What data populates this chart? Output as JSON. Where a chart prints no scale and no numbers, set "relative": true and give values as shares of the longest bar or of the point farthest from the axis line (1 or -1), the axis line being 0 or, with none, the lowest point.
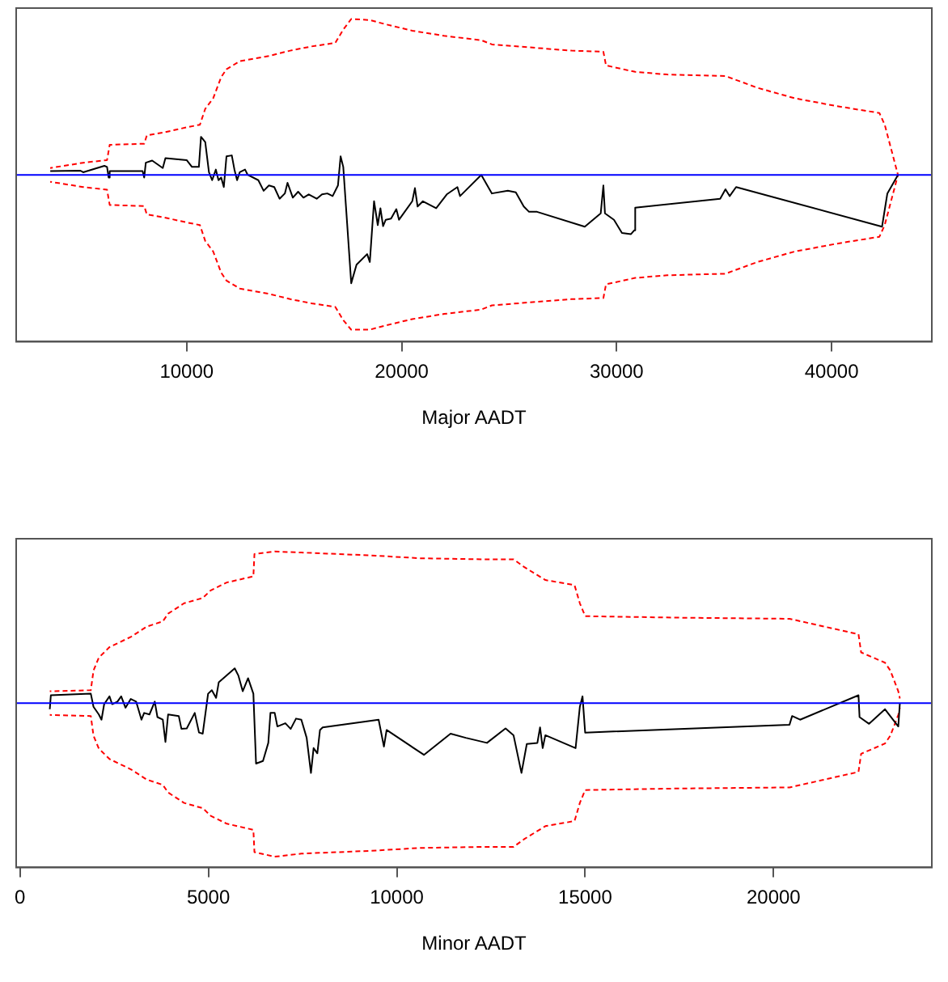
{
  "chart_data": [
    {
      "type": "line",
      "xlabel": "Major AADT",
      "xlim": [
        2070,
        44660
      ],
      "xticks": [
        10000,
        20000,
        30000,
        40000
      ],
      "relative": true,
      "tick_labels": "x",
      "ref_lines": [
        {
          "axis": "y",
          "value": 0,
          "color": "#0000ff"
        }
      ],
      "series": [
        {
          "color": "#000000",
          "x": [
            3655,
            5062,
            5185,
            6173,
            6296,
            6370,
            6420,
            7951,
            8025,
            8099,
            8395,
            8889,
            9012,
            10000,
            10247,
            10568,
            10667,
            10864,
            11037,
            11185,
            11358,
            11481,
            11605,
            11728,
            11852,
            12099,
            12222,
            12346,
            12469,
            12716,
            12840,
            13333,
            13580,
            13827,
            14074,
            14321,
            14568,
            14691,
            14938,
            15185,
            15432,
            15679,
            16049,
            16296,
            16543,
            16790,
            17037,
            17160,
            17284,
            17654,
            17901,
            18395,
            18519,
            18716,
            18889,
            19012,
            19136,
            19259,
            19506,
            19753,
            19877,
            20494,
            20617,
            20741,
            20988,
            21605,
            22099,
            22593,
            22716,
            22963,
            23704,
            24198,
            24938,
            25309,
            25679,
            25926,
            26296,
            28518,
            29259,
            29383,
            29457,
            29876,
            30247,
            30667,
            30815,
            30864,
            34815,
            35062,
            35259,
            35556,
            42345,
            42592,
            43086
          ],
          "values": [
            0.024,
            0.027,
            0.017,
            0.058,
            0.051,
            -0.017,
            0.024,
            0.024,
            -0.017,
            0.078,
            0.092,
            0.044,
            0.108,
            0.095,
            0.051,
            0.051,
            0.244,
            0.21,
            0.017,
            -0.034,
            0.034,
            -0.034,
            -0.017,
            -0.078,
            0.119,
            0.125,
            0.034,
            -0.034,
            0.017,
            0.034,
            0,
            -0.034,
            -0.102,
            -0.068,
            -0.078,
            -0.153,
            -0.119,
            -0.051,
            -0.146,
            -0.108,
            -0.146,
            -0.125,
            -0.153,
            -0.125,
            -0.119,
            -0.136,
            -0.068,
            0.119,
            0.051,
            -0.695,
            -0.576,
            -0.508,
            -0.559,
            -0.169,
            -0.322,
            -0.214,
            -0.329,
            -0.288,
            -0.281,
            -0.22,
            -0.288,
            -0.169,
            -0.085,
            -0.203,
            -0.169,
            -0.214,
            -0.125,
            -0.078,
            -0.136,
            -0.102,
            0,
            -0.119,
            -0.102,
            -0.112,
            -0.203,
            -0.237,
            -0.237,
            -0.332,
            -0.247,
            -0.068,
            -0.247,
            -0.288,
            -0.373,
            -0.38,
            -0.356,
            -0.21,
            -0.153,
            -0.092,
            -0.136,
            -0.078,
            -0.332,
            -0.119,
            0
          ]
        },
        {
          "color": "#ff0000",
          "line_style": "dashed",
          "x": [
            3652,
            5185,
            6296,
            6420,
            8025,
            8148,
            8889,
            10000,
            10617,
            10864,
            11235,
            11605,
            11852,
            12469,
            13827,
            14815,
            15802,
            16914,
            17284,
            17654,
            18519,
            19259,
            20494,
            21975,
            23704,
            24198,
            27901,
            29383,
            29506,
            30864,
            32346,
            35062,
            36543,
            38272,
            40247,
            42222,
            42469,
            43086
          ],
          "values": [
            0.044,
            0.078,
            0.095,
            0.193,
            0.2,
            0.254,
            0.271,
            0.305,
            0.322,
            0.424,
            0.492,
            0.627,
            0.678,
            0.729,
            0.763,
            0.797,
            0.824,
            0.847,
            0.932,
            1,
            0.993,
            0.966,
            0.925,
            0.892,
            0.864,
            0.837,
            0.797,
            0.79,
            0.702,
            0.661,
            0.644,
            0.634,
            0.559,
            0.492,
            0.441,
            0.397,
            0.322,
            0
          ]
        },
        {
          "color": "#ff0000",
          "line_style": "dashed",
          "x": [
            3652,
            5185,
            6296,
            6420,
            8025,
            8148,
            8889,
            10000,
            10617,
            10864,
            11235,
            11605,
            11852,
            12469,
            13827,
            14815,
            15802,
            16914,
            17284,
            17654,
            18519,
            19259,
            20494,
            21975,
            23704,
            24198,
            27901,
            29383,
            29506,
            30864,
            32346,
            35062,
            36543,
            38272,
            40247,
            42222,
            42469,
            43086
          ],
          "values": [
            -0.044,
            -0.078,
            -0.095,
            -0.193,
            -0.2,
            -0.254,
            -0.271,
            -0.305,
            -0.322,
            -0.424,
            -0.492,
            -0.627,
            -0.678,
            -0.729,
            -0.763,
            -0.797,
            -0.824,
            -0.847,
            -0.932,
            -0.993,
            -0.993,
            -0.966,
            -0.925,
            -0.892,
            -0.864,
            -0.837,
            -0.797,
            -0.79,
            -0.702,
            -0.661,
            -0.644,
            -0.634,
            -0.559,
            -0.492,
            -0.441,
            -0.397,
            -0.322,
            0
          ]
        }
      ]
    },
    {
      "type": "line",
      "xlabel": "Minor AADT",
      "xlim": [
        -100,
        24200
      ],
      "xticks": [
        0,
        5000,
        10000,
        15000,
        20000
      ],
      "relative": true,
      "tick_labels": "x",
      "ref_lines": [
        {
          "axis": "y",
          "value": 0,
          "color": "#0000ff"
        }
      ],
      "series": [
        {
          "color": "#000000",
          "x": [
            792,
            820,
            1881,
            1952,
            2093,
            2164,
            2235,
            2376,
            2447,
            2588,
            2687,
            2801,
            2942,
            3083,
            3225,
            3296,
            3437,
            3578,
            3649,
            3791,
            3861,
            3932,
            4215,
            4286,
            4427,
            4639,
            4752,
            4851,
            4993,
            5092,
            5205,
            5276,
            5700,
            5799,
            5912,
            6054,
            6195,
            6266,
            6450,
            6591,
            6648,
            6761,
            6832,
            7044,
            7185,
            7327,
            7468,
            7609,
            7723,
            7793,
            7892,
            7963,
            8034,
            9519,
            9660,
            9731,
            10721,
            11428,
            11831,
            12394,
            12887,
            13099,
            13310,
            13451,
            13732,
            13803,
            13873,
            13944,
            14746,
            14859,
            14930,
            15000,
            20423,
            20493,
            20704,
            22254,
            22282,
            22535,
            22958,
            23310,
            23352
          ],
          "values": [
            -0.04,
            0.051,
            0.061,
            -0.024,
            -0.074,
            -0.108,
            -0.007,
            0.044,
            -0.007,
            0.01,
            0.044,
            -0.03,
            0.027,
            0.01,
            -0.108,
            -0.064,
            -0.074,
            0.01,
            -0.091,
            -0.108,
            -0.253,
            -0.074,
            -0.084,
            -0.168,
            -0.165,
            -0.064,
            -0.192,
            -0.199,
            0.061,
            0.084,
            0.034,
            0.135,
            0.226,
            0.178,
            0.077,
            0.162,
            0.061,
            -0.394,
            -0.377,
            -0.259,
            -0.064,
            -0.064,
            -0.152,
            -0.131,
            -0.168,
            -0.101,
            -0.108,
            -0.226,
            -0.455,
            -0.293,
            -0.327,
            -0.175,
            -0.158,
            -0.108,
            -0.283,
            -0.175,
            -0.337,
            -0.199,
            -0.226,
            -0.259,
            -0.165,
            -0.209,
            -0.455,
            -0.266,
            -0.259,
            -0.158,
            -0.293,
            -0.209,
            -0.293,
            -0.024,
            0.044,
            -0.192,
            -0.141,
            -0.084,
            -0.108,
            0.051,
            -0.091,
            -0.135,
            -0.04,
            -0.152,
            0
          ]
        },
        {
          "color": "#ff0000",
          "line_style": "dashed",
          "x": [
            792,
            1881,
            1952,
            2093,
            2376,
            2942,
            3366,
            3791,
            3932,
            4356,
            4851,
            5064,
            5488,
            6195,
            6223,
            6761,
            7468,
            9448,
            10580,
            12277,
            13099,
            13380,
            13944,
            14718,
            14859,
            15000,
            17465,
            20423,
            22254,
            22324,
            22958,
            23099,
            23310,
            23352
          ],
          "values": [
            0.077,
            0.084,
            0.212,
            0.296,
            0.364,
            0.431,
            0.498,
            0.532,
            0.582,
            0.65,
            0.684,
            0.734,
            0.785,
            0.825,
            0.97,
            0.987,
            0.98,
            0.96,
            0.943,
            0.936,
            0.936,
            0.886,
            0.801,
            0.768,
            0.65,
            0.566,
            0.556,
            0.549,
            0.448,
            0.33,
            0.263,
            0.212,
            0.077,
            0.03
          ]
        },
        {
          "color": "#ff0000",
          "line_style": "dashed",
          "x": [
            792,
            1881,
            1952,
            2093,
            2376,
            2942,
            3366,
            3791,
            3932,
            4356,
            4851,
            5064,
            5488,
            6195,
            6223,
            6761,
            7468,
            9448,
            10580,
            12277,
            13099,
            13380,
            13944,
            14718,
            14859,
            15000,
            17465,
            20423,
            22254,
            22324,
            22958,
            23099,
            23310,
            23352
          ],
          "values": [
            -0.077,
            -0.084,
            -0.212,
            -0.296,
            -0.364,
            -0.431,
            -0.498,
            -0.532,
            -0.582,
            -0.65,
            -0.684,
            -0.734,
            -0.785,
            -0.825,
            -0.97,
            -1,
            -0.98,
            -0.96,
            -0.943,
            -0.936,
            -0.936,
            -0.886,
            -0.801,
            -0.768,
            -0.65,
            -0.566,
            -0.556,
            -0.549,
            -0.448,
            -0.33,
            -0.263,
            -0.212,
            -0.077,
            -0.03
          ]
        }
      ]
    }
  ]
}
